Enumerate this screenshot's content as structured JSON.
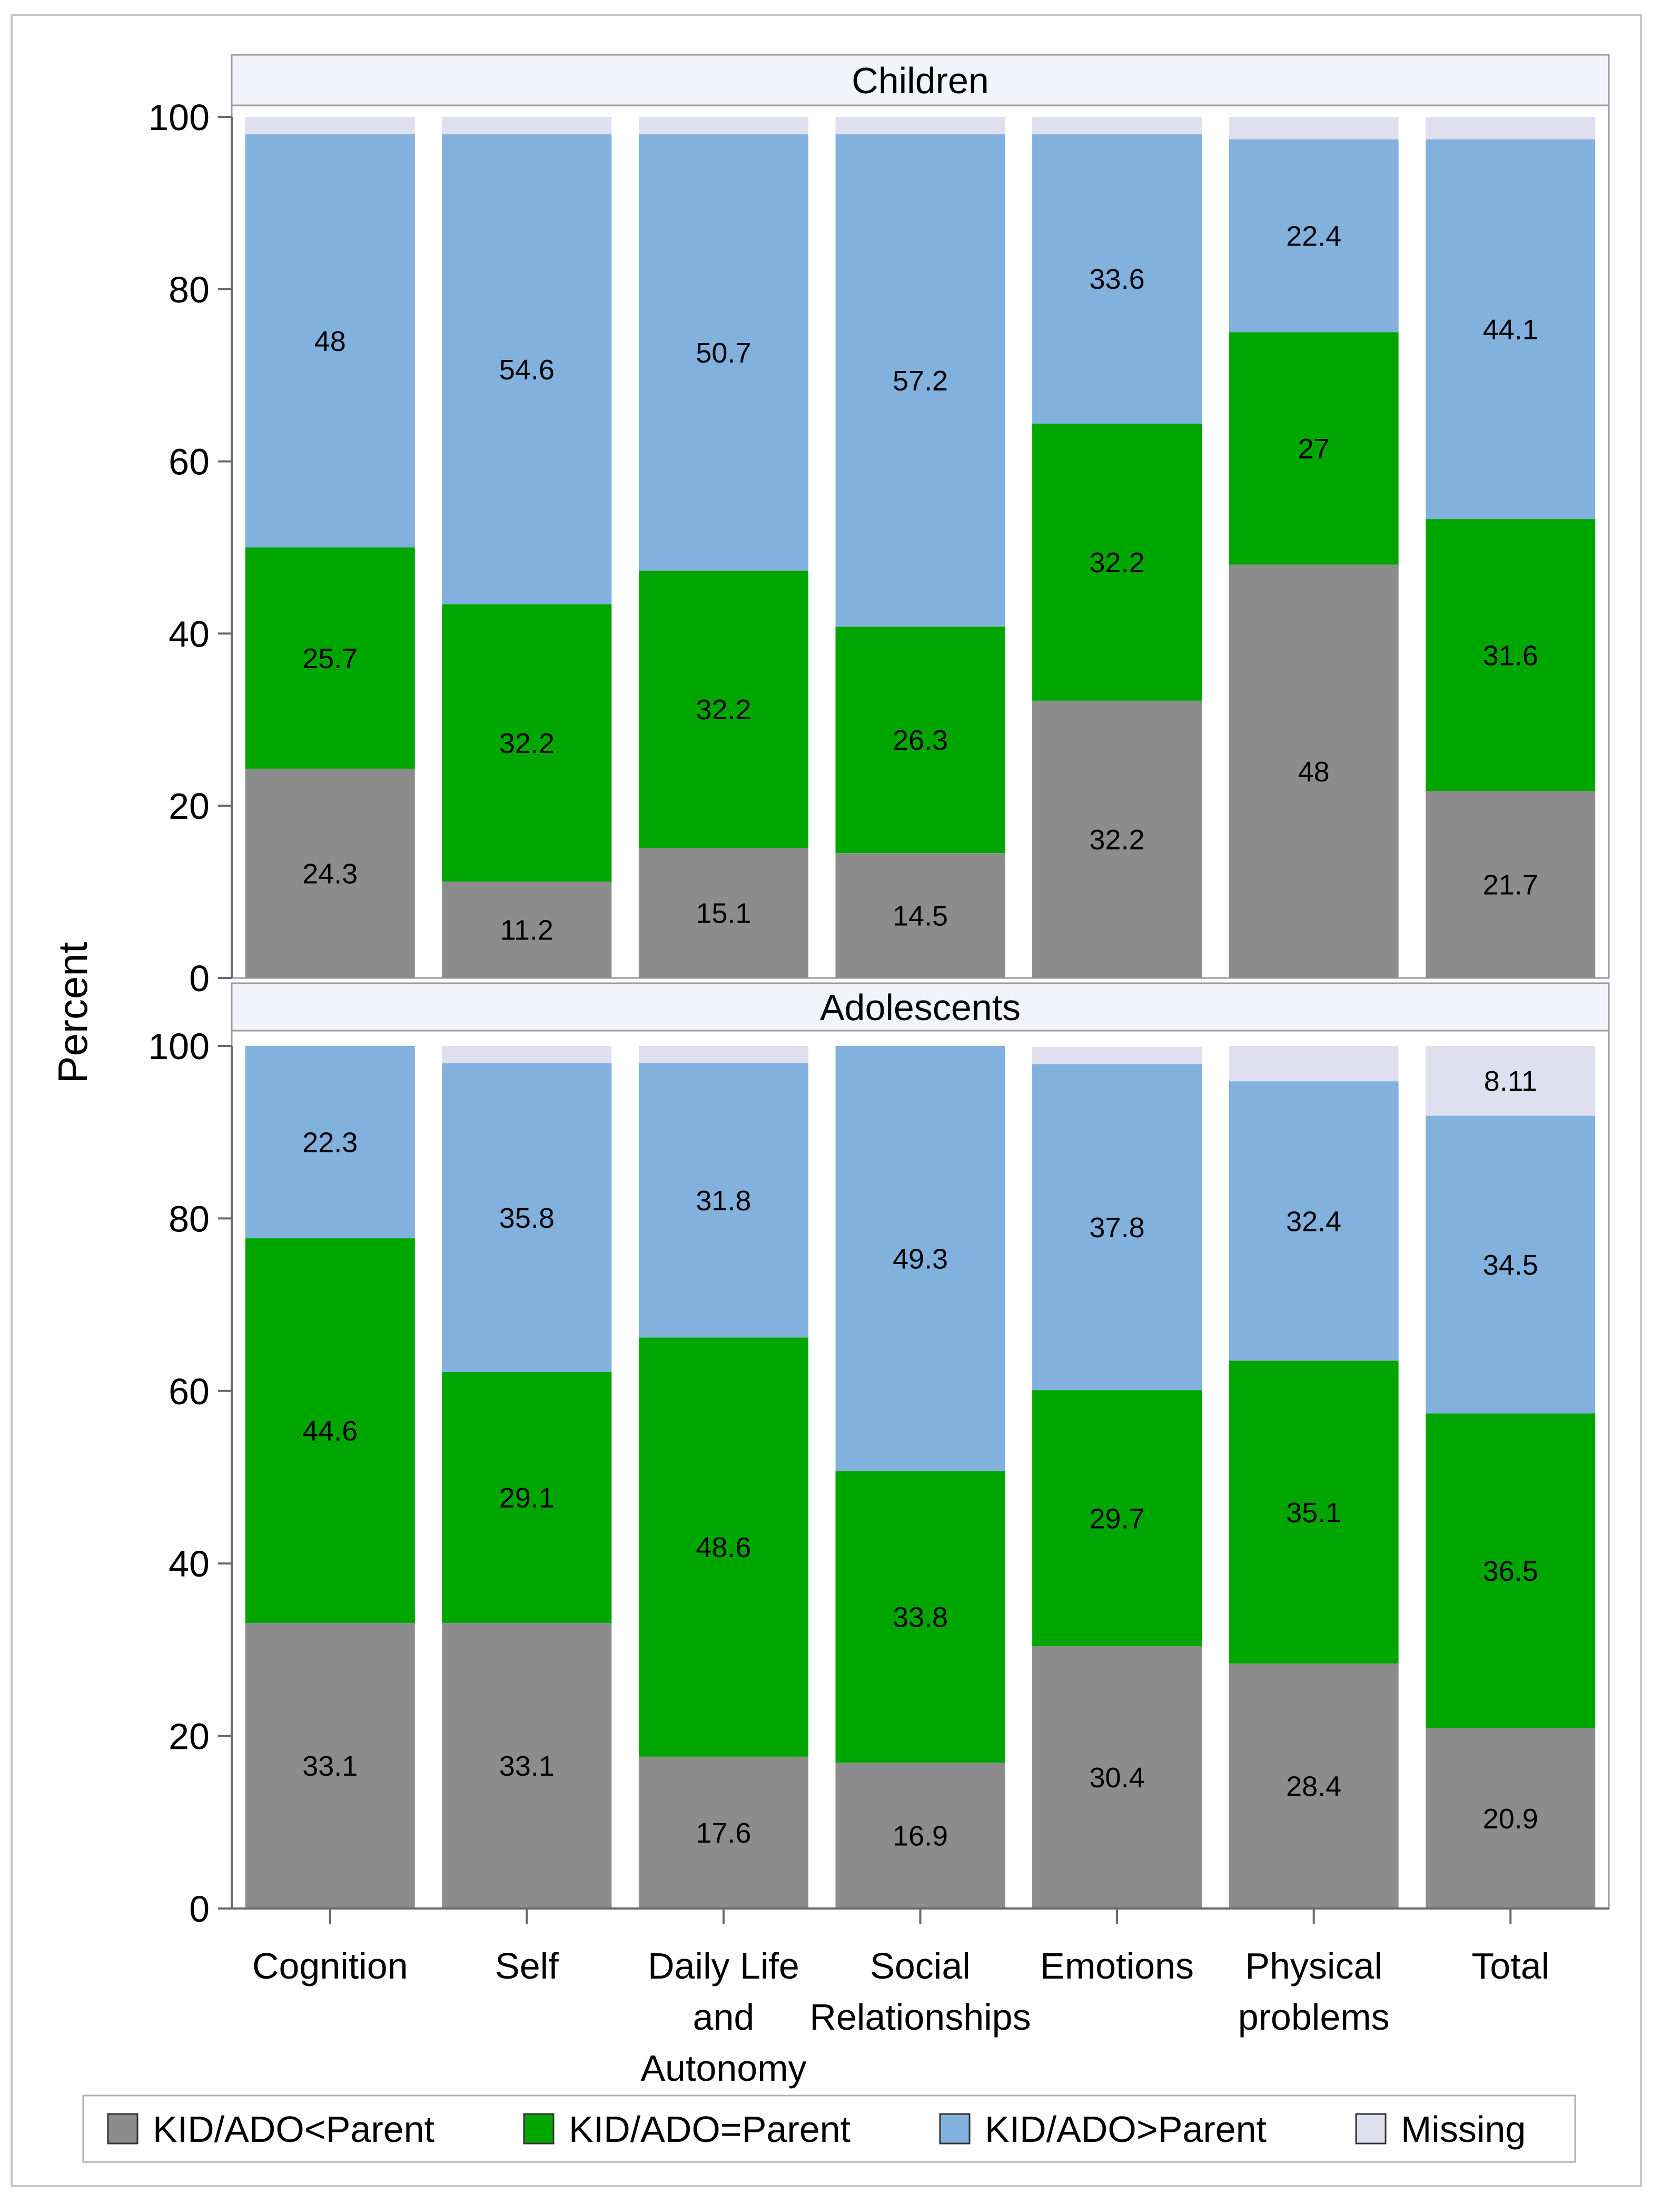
{
  "chart_data": {
    "type": "bar",
    "stacked": true,
    "ylabel": "Percent",
    "ylim": [
      0,
      100
    ],
    "yticks": [
      0,
      20,
      40,
      60,
      80,
      100
    ],
    "categories": [
      [
        "Cognition"
      ],
      [
        "Self"
      ],
      [
        "Daily Life",
        "and",
        "Autonomy"
      ],
      [
        "Social",
        "Relationships"
      ],
      [
        "Emotions"
      ],
      [
        "Physical",
        "problems"
      ],
      [
        "Total"
      ]
    ],
    "series_order": [
      "KID/ADO<Parent",
      "KID/ADO=Parent",
      "KID/ADO>Parent",
      "Missing"
    ],
    "colors": {
      "KID/ADO<Parent": "#8c8c8c",
      "KID/ADO=Parent": "#00a600",
      "KID/ADO>Parent": "#81b1dc",
      "Missing": "#e0dff0"
    },
    "panels": [
      {
        "title": "Children",
        "series": [
          {
            "name": "KID/ADO<Parent",
            "values": [
              24.3,
              11.2,
              15.1,
              14.5,
              32.2,
              48,
              21.7
            ],
            "labels": [
              "24.3",
              "11.2",
              "15.1",
              "14.5",
              "32.2",
              "48",
              "21.7"
            ]
          },
          {
            "name": "KID/ADO=Parent",
            "values": [
              25.7,
              32.2,
              32.2,
              26.3,
              32.2,
              27,
              31.6
            ],
            "labels": [
              "25.7",
              "32.2",
              "32.2",
              "26.3",
              "32.2",
              "27",
              "31.6"
            ]
          },
          {
            "name": "KID/ADO>Parent",
            "values": [
              48,
              54.6,
              50.7,
              57.2,
              33.6,
              22.4,
              44.1
            ],
            "labels": [
              "48",
              "54.6",
              "50.7",
              "57.2",
              "33.6",
              "22.4",
              "44.1"
            ]
          },
          {
            "name": "Missing",
            "values": [
              2,
              2,
              2,
              2,
              2,
              2.6,
              2.6
            ],
            "labels": [
              "",
              "",
              "",
              "",
              "",
              "",
              ""
            ]
          }
        ]
      },
      {
        "title": "Adolescents",
        "series": [
          {
            "name": "KID/ADO<Parent",
            "values": [
              33.1,
              33.1,
              17.6,
              16.9,
              30.4,
              28.4,
              20.9
            ],
            "labels": [
              "33.1",
              "33.1",
              "17.6",
              "16.9",
              "30.4",
              "28.4",
              "20.9"
            ]
          },
          {
            "name": "KID/ADO=Parent",
            "values": [
              44.6,
              29.1,
              48.6,
              33.8,
              29.7,
              35.1,
              36.5
            ],
            "labels": [
              "44.6",
              "29.1",
              "48.6",
              "33.8",
              "29.7",
              "35.1",
              "36.5"
            ]
          },
          {
            "name": "KID/ADO>Parent",
            "values": [
              22.3,
              35.8,
              31.8,
              49.3,
              37.8,
              32.4,
              34.5
            ],
            "labels": [
              "22.3",
              "35.8",
              "31.8",
              "49.3",
              "37.8",
              "32.4",
              "34.5"
            ]
          },
          {
            "name": "Missing",
            "values": [
              0,
              2,
              2,
              0,
              2,
              4.1,
              8.11
            ],
            "labels": [
              "",
              "",
              "",
              "",
              "",
              "",
              "8.11"
            ]
          }
        ]
      }
    ],
    "legend": {
      "position": "bottom",
      "entries": [
        "KID/ADO<Parent",
        "KID/ADO=Parent",
        "KID/ADO>Parent",
        "Missing"
      ]
    }
  }
}
